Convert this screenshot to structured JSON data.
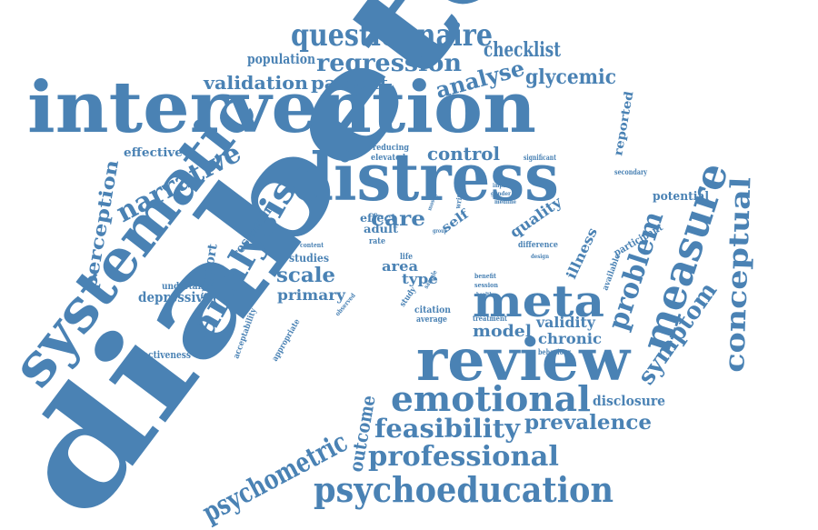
{
  "colors": {
    "word": "#4a82b4",
    "background": "#ffffff"
  },
  "words": [
    "diabetes",
    "intervention",
    "distress",
    "systematic",
    "review",
    "meta",
    "measure",
    "emotional",
    "questionnaire",
    "analysis",
    "psychoeducation",
    "professional",
    "psychometric",
    "feasibility",
    "conceptual",
    "narrative",
    "problem",
    "regression",
    "symptom",
    "prevalence",
    "perception",
    "analyse",
    "validation",
    "patient",
    "glycemic",
    "checklist",
    "population",
    "control",
    "scale",
    "care",
    "outcome",
    "primary",
    "model",
    "chronic",
    "validity",
    "quality",
    "illness",
    "depressive",
    "support",
    "research",
    "effective",
    "disclosure",
    "effectiveness",
    "potential",
    "reported",
    "participant",
    "studies",
    "area",
    "type",
    "self",
    "adult",
    "effect",
    "undertaken",
    "acceptability",
    "appropriate",
    "citation",
    "average",
    "benefit",
    "session",
    "treatment",
    "behaviour",
    "difference",
    "available",
    "secondary",
    "reducing",
    "elevated",
    "significant",
    "written",
    "life",
    "rate",
    "content",
    "observed",
    "health",
    "medline",
    "gender",
    "impact",
    "design",
    "study",
    "group",
    "mostly",
    "sample"
  ]
}
